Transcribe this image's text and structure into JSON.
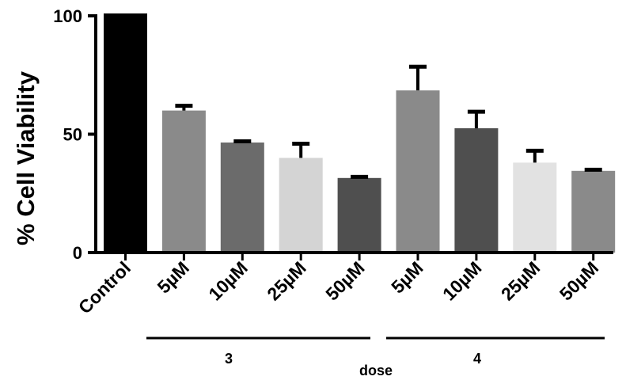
{
  "chart_data": {
    "type": "bar",
    "ylabel": "% Cell Viability",
    "xlabel": "dose",
    "ylim": [
      0,
      100
    ],
    "yticks": [
      "0",
      "50",
      "100"
    ],
    "grid": false,
    "categories": [
      "Control",
      "5µM",
      "10µM",
      "25µM",
      "50µM",
      "5µM",
      "10µM",
      "25µM",
      "50µM"
    ],
    "values": [
      101,
      60,
      46.5,
      40,
      31.5,
      68.5,
      52.5,
      38,
      34.5
    ],
    "errors": [
      0,
      2,
      0.5,
      6,
      0.5,
      10,
      7,
      5,
      0.5
    ],
    "colors": [
      "#000000",
      "#8a8a8a",
      "#6b6b6b",
      "#d4d4d4",
      "#4f4f4f",
      "#8a8a8a",
      "#4f4f4f",
      "#e2e2e2",
      "#8a8a8a"
    ],
    "groups": [
      {
        "label": "3",
        "categories": [
          "5µM",
          "10µM",
          "25µM",
          "50µM"
        ]
      },
      {
        "label": "4",
        "categories": [
          "5µM",
          "10µM",
          "25µM",
          "50µM"
        ]
      }
    ]
  }
}
